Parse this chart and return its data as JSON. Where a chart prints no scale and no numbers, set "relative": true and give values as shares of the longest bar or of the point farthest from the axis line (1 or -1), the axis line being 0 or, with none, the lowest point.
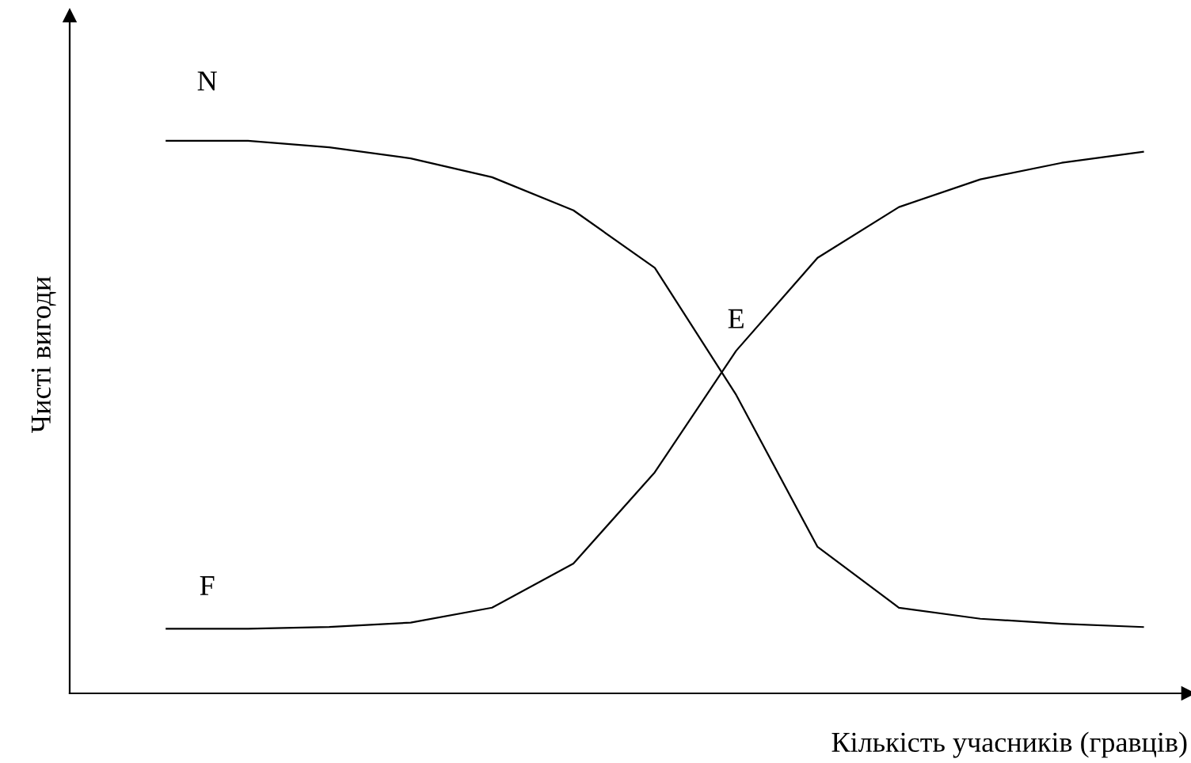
{
  "chart_data": {
    "type": "line",
    "relative": true,
    "xlabel": "Кількість учасників (гравців)",
    "ylabel": "Чисті вигоди",
    "categories": [
      null,
      null,
      null,
      null,
      null,
      null,
      null,
      null,
      null,
      null,
      null,
      null,
      null
    ],
    "series": [
      {
        "name": "N",
        "color": "#000000",
        "values": [
          1.0,
          1.0,
          0.988,
          0.968,
          0.934,
          0.874,
          0.77,
          0.54,
          0.265,
          0.155,
          0.135,
          0.126,
          0.12
        ]
      },
      {
        "name": "F",
        "color": "#000000",
        "values": [
          0.117,
          0.117,
          0.12,
          0.128,
          0.155,
          0.235,
          0.4,
          0.62,
          0.788,
          0.88,
          0.93,
          0.96,
          0.98
        ]
      }
    ],
    "annotations": [
      "E"
    ],
    "grid": false,
    "legend": false,
    "marker": "none",
    "line_style": "solid"
  }
}
